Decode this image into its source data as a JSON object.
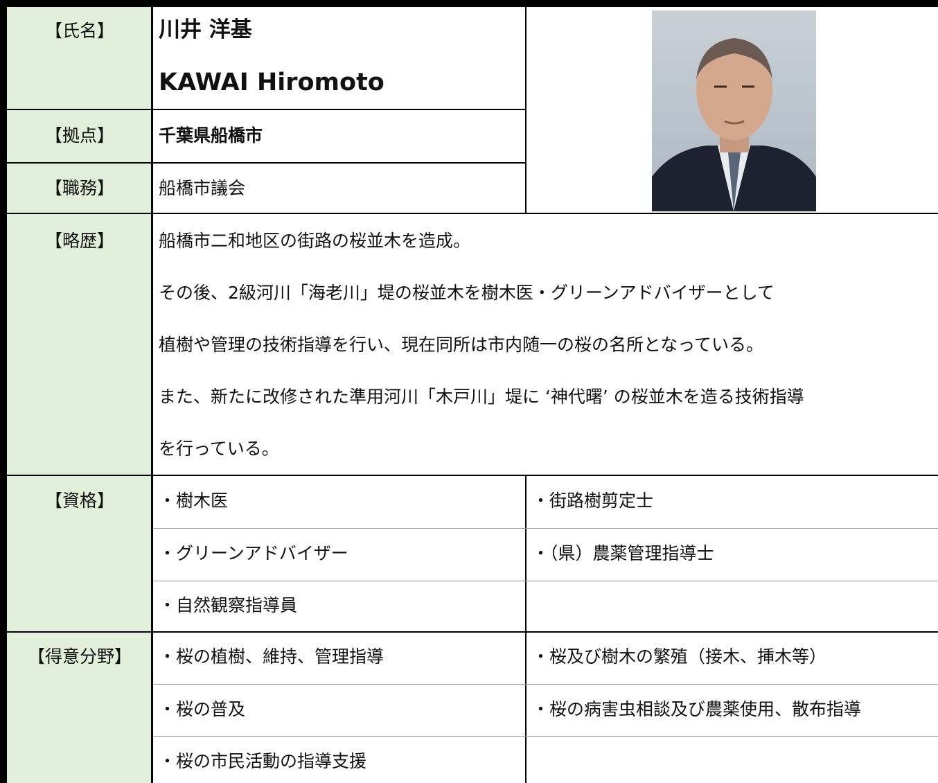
{
  "labels": {
    "name": "【氏名】",
    "base": "【拠点】",
    "duty": "【職務】",
    "history": "【略歴】",
    "qualifications": "【資格】",
    "specialties": "【得意分野】"
  },
  "name": {
    "ja": "川井 洋基",
    "en": "KAWAI Hiromoto"
  },
  "base": "千葉県船橋市",
  "duty": "船橋市議会",
  "history": [
    "船橋市二和地区の街路の桜並木を造成。",
    "その後、2級河川「海老川」堤の桜並木を樹木医・グリーンアドバイザーとして",
    "植樹や管理の技術指導を行い、現在同所は市内随一の桜の名所となっている。",
    "また、新たに改修された準用河川「木戸川」堤に ‘神代曙’ の桜並木を造る技術指導",
    "を行っている。"
  ],
  "qualifications": [
    "・樹木医",
    "・街路樹剪定士",
    "・グリーンアドバイザー",
    "・（県）農薬管理指導士",
    "・自然観察指導員"
  ],
  "specialties": [
    "・桜の植樹、維持、管理指導",
    "・桜及び樹木の繁殖（接木、挿木等）",
    "・桜の普及",
    "・桜の病害虫相談及び農薬使用、散布指導",
    "・桜の市民活動の指導支援"
  ]
}
